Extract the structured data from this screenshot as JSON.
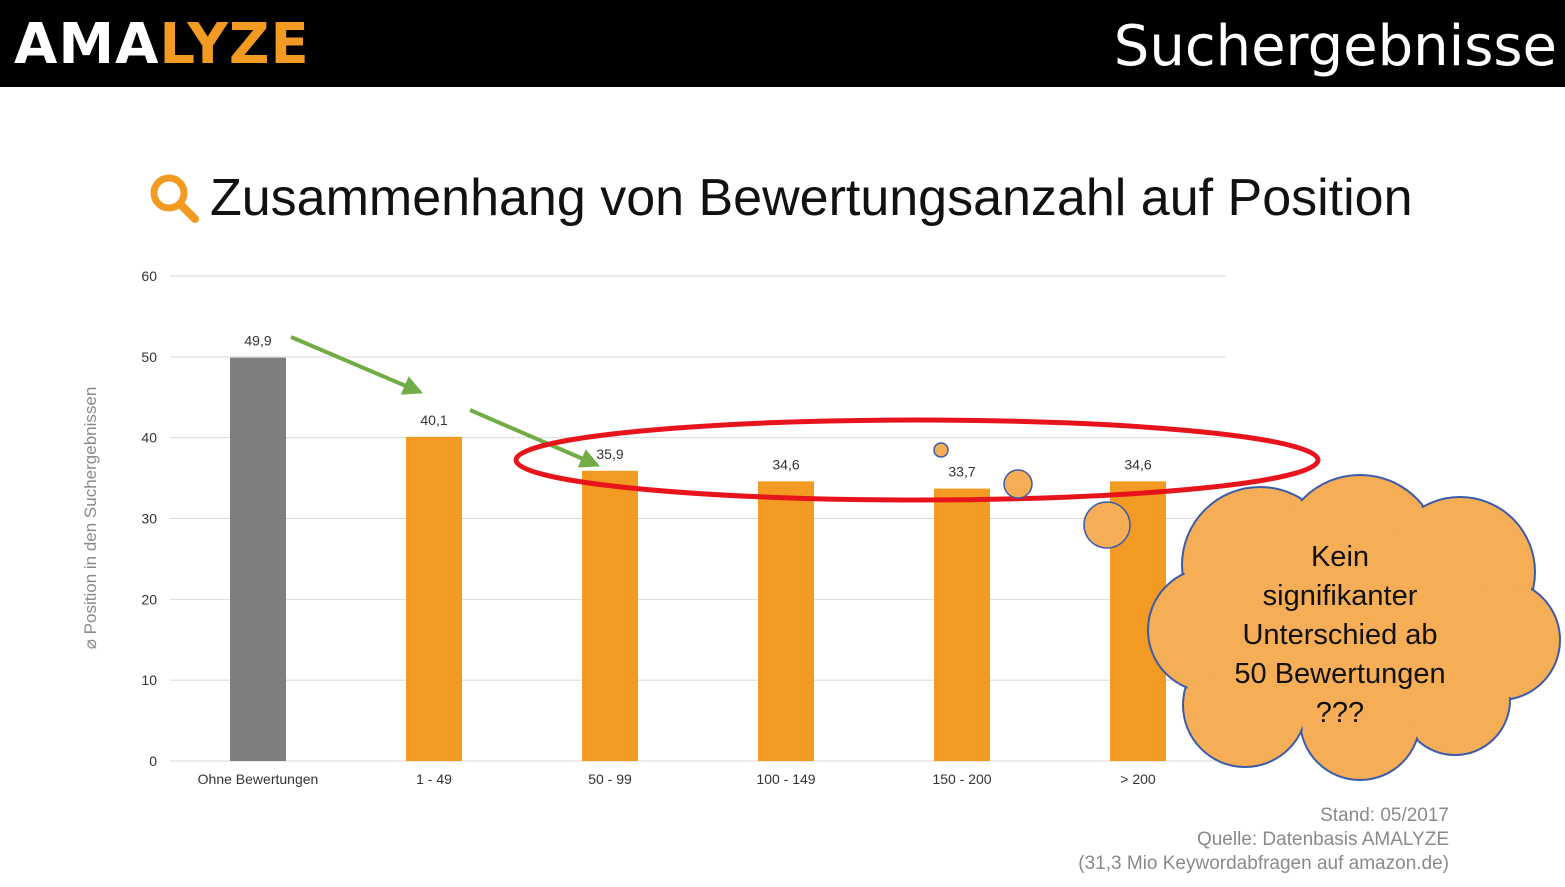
{
  "header": {
    "logo_main": "AMA",
    "logo_accent": "LYZE",
    "title": "Suchergebnisse"
  },
  "slide": {
    "title": "Zusammenhang von Bewertungsanzahl auf Position"
  },
  "chart_data": {
    "type": "bar",
    "categories": [
      "Ohne Bewertungen",
      "1 - 49",
      "50 - 99",
      "100 - 149",
      "150 - 200",
      "> 200"
    ],
    "values": [
      49.9,
      40.1,
      35.9,
      34.6,
      33.7,
      34.6
    ],
    "value_labels": [
      "49,9",
      "40,1",
      "35,9",
      "34,6",
      "33,7",
      "34,6"
    ],
    "colors": [
      "#7f7f7f",
      "#F39A23",
      "#F39A23",
      "#F39A23",
      "#F39A23",
      "#F39A23"
    ],
    "ylabel": "⌀ Position in den Suchergebnissen",
    "ylim": [
      0,
      60
    ],
    "yticks": [
      0,
      10,
      20,
      30,
      40,
      50,
      60
    ],
    "grid": true,
    "annotations": {
      "cloud_lines": [
        "Kein",
        "signifikanter",
        "Unterschied ab",
        "50 Bewertungen",
        "???"
      ],
      "arrow_color": "#70AD47",
      "ellipse_color": "#E8141B"
    }
  },
  "source": {
    "stand": "Stand: 05/2017",
    "quelle": "Quelle: Datenbasis AMALYZE",
    "detail": "(31,3 Mio Keywordabfragen auf amazon.de)"
  }
}
